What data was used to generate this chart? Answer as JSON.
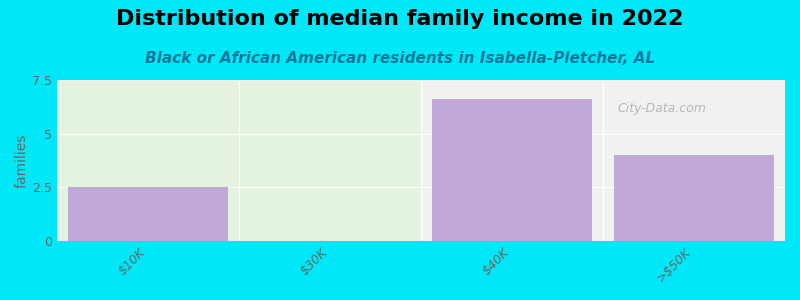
{
  "title": "Distribution of median family income in 2022",
  "subtitle": "Black or African American residents in Isabella-Pletcher, AL",
  "categories": [
    "$10K",
    "$30K",
    "$40K",
    ">$50K"
  ],
  "values": [
    2.5,
    0,
    6.6,
    4.0
  ],
  "bar_color": "#c0a8d8",
  "ylabel": "families",
  "ylim": [
    0,
    7.5
  ],
  "yticks": [
    0,
    2.5,
    5,
    7.5
  ],
  "background_color": "#00e8f8",
  "plot_bg_color_left": "#e4f2e0",
  "plot_bg_color_right": "#f0f2f0",
  "title_fontsize": 16,
  "subtitle_fontsize": 11,
  "watermark": "City-Data.com",
  "tick_label_rotation": 45,
  "tick_color": "#666666",
  "ylabel_color": "#666666"
}
